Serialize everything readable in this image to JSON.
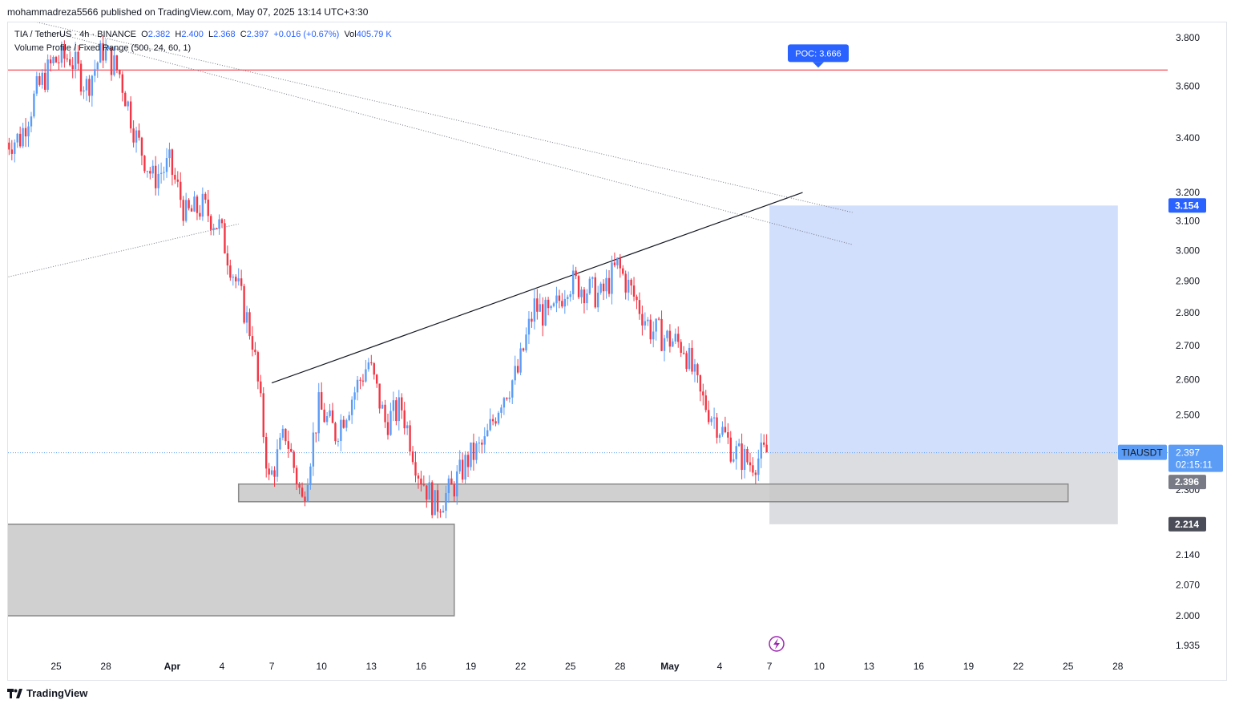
{
  "attribution": "mohammadreza5566 published on TradingView.com, May 07, 2025 13:14 UTC+3:30",
  "legend": {
    "symbol": "TIA / TetherUS · 4h · BINANCE",
    "o_label": "O",
    "o": "2.382",
    "h_label": "H",
    "h": "2.400",
    "l_label": "L",
    "l": "2.368",
    "c_label": "C",
    "c": "2.397",
    "change": "+0.016 (+0.67%)",
    "vol_label": "Vol",
    "vol": "405.79 K",
    "indicator": "Volume Profile / Fixed Range (500, 24, 60, 1)"
  },
  "footer": {
    "brand": "TradingView"
  },
  "colors": {
    "up": "#5b9cf6",
    "down": "#f23645",
    "poc_line": "#f23645",
    "target_zone": "#c9d8fb",
    "stop_zone": "#dcdde0",
    "support_box": "#c8c8c8",
    "price_tag": "#2962ff",
    "poc_tag": "#2962ff",
    "dark_tag": "#4a4d57"
  },
  "chart_data": {
    "type": "candlestick",
    "symbol": "TIAUSDT",
    "interval": "4h",
    "y_axis": {
      "ticks": [
        3.8,
        3.6,
        3.4,
        3.2,
        3.1,
        3.0,
        2.9,
        2.8,
        2.7,
        2.6,
        2.5,
        2.3,
        2.14,
        2.07,
        2.0,
        1.935
      ],
      "tick_labels": [
        "3.800",
        "3.600",
        "3.400",
        "3.200",
        "3.100",
        "3.000",
        "2.900",
        "2.800",
        "2.700",
        "2.600",
        "2.500",
        "2.300",
        "2.140",
        "2.070",
        "2.000",
        "1.935"
      ],
      "scale": "log"
    },
    "x_axis": {
      "labels": [
        "25",
        "28",
        "Apr",
        "4",
        "7",
        "10",
        "13",
        "16",
        "19",
        "22",
        "25",
        "28",
        "May",
        "4",
        "7",
        "10",
        "13",
        "16",
        "19",
        "22",
        "25",
        "28"
      ],
      "dates": [
        "2025-03-25",
        "2025-03-28",
        "2025-04-01",
        "2025-04-04",
        "2025-04-07",
        "2025-04-10",
        "2025-04-13",
        "2025-04-16",
        "2025-04-19",
        "2025-04-22",
        "2025-04-25",
        "2025-04-28",
        "2025-05-01",
        "2025-05-04",
        "2025-05-07",
        "2025-05-10",
        "2025-05-13",
        "2025-05-16",
        "2025-05-19",
        "2025-05-22",
        "2025-05-25",
        "2025-05-28"
      ],
      "bold": [
        "Apr",
        "May"
      ]
    },
    "price_path": [
      [
        "2025-03-22",
        3.38
      ],
      [
        "2025-03-23",
        3.4
      ],
      [
        "2025-03-24",
        3.58
      ],
      [
        "2025-03-25",
        3.7
      ],
      [
        "2025-03-26",
        3.72
      ],
      [
        "2025-03-27",
        3.6
      ],
      [
        "2025-03-28",
        3.75
      ],
      [
        "2025-03-29",
        3.65
      ],
      [
        "2025-03-30",
        3.4
      ],
      [
        "2025-03-31",
        3.25
      ],
      [
        "2025-04-01",
        3.3
      ],
      [
        "2025-04-02",
        3.12
      ],
      [
        "2025-04-03",
        3.15
      ],
      [
        "2025-04-04",
        3.08
      ],
      [
        "2025-04-05",
        2.9
      ],
      [
        "2025-04-06",
        2.72
      ],
      [
        "2025-04-07",
        2.32
      ],
      [
        "2025-04-08",
        2.45
      ],
      [
        "2025-04-09",
        2.27
      ],
      [
        "2025-04-10",
        2.52
      ],
      [
        "2025-04-11",
        2.45
      ],
      [
        "2025-04-12",
        2.55
      ],
      [
        "2025-04-13",
        2.65
      ],
      [
        "2025-04-14",
        2.48
      ],
      [
        "2025-04-15",
        2.52
      ],
      [
        "2025-04-16",
        2.35
      ],
      [
        "2025-04-17",
        2.26
      ],
      [
        "2025-04-18",
        2.3
      ],
      [
        "2025-04-19",
        2.38
      ],
      [
        "2025-04-20",
        2.42
      ],
      [
        "2025-04-21",
        2.55
      ],
      [
        "2025-04-22",
        2.62
      ],
      [
        "2025-04-23",
        2.82
      ],
      [
        "2025-04-24",
        2.78
      ],
      [
        "2025-04-25",
        2.9
      ],
      [
        "2025-04-26",
        2.88
      ],
      [
        "2025-04-27",
        2.85
      ],
      [
        "2025-04-28",
        2.95
      ],
      [
        "2025-04-29",
        2.85
      ],
      [
        "2025-04-30",
        2.75
      ],
      [
        "2025-05-01",
        2.72
      ],
      [
        "2025-05-02",
        2.7
      ],
      [
        "2025-05-03",
        2.55
      ],
      [
        "2025-05-04",
        2.48
      ],
      [
        "2025-05-05",
        2.4
      ],
      [
        "2025-05-06",
        2.37
      ],
      [
        "2025-05-07",
        2.397
      ]
    ],
    "key_prices": {
      "last": 2.397,
      "last_label": "2.397",
      "countdown": "02:15:11",
      "symbol_tag": "TIAUSDT",
      "poc": 3.666,
      "poc_label": "POC: 3.666",
      "target": 3.154,
      "target_label": "3.154",
      "mid": 2.396,
      "mid_label": "2.396",
      "stop": 2.214,
      "stop_label": "2.214"
    },
    "zones": [
      {
        "kind": "target",
        "x_from": "2025-05-07",
        "x_to": "2025-05-28",
        "y_from": 2.397,
        "y_to": 3.154
      },
      {
        "kind": "stop",
        "x_from": "2025-05-07",
        "x_to": "2025-05-28",
        "y_from": 2.214,
        "y_to": 2.397
      },
      {
        "kind": "support",
        "x_from": "2025-04-05",
        "x_to": "2025-05-25",
        "y_from": 2.27,
        "y_to": 2.315
      },
      {
        "kind": "support",
        "x_from": "2025-03-21",
        "x_to": "2025-04-18",
        "y_from": 2.0,
        "y_to": 2.214
      }
    ],
    "trendlines": [
      {
        "style": "solid",
        "from": [
          "2025-04-07",
          2.59
        ],
        "to": [
          "2025-05-09",
          3.2
        ]
      },
      {
        "style": "dotted",
        "from": [
          "2025-03-23",
          3.88
        ],
        "to": [
          "2025-05-12",
          3.13
        ]
      },
      {
        "style": "dotted",
        "from": [
          "2025-03-25",
          3.82
        ],
        "to": [
          "2025-05-12",
          3.02
        ]
      },
      {
        "style": "dotted",
        "from": [
          "2025-03-21",
          2.9
        ],
        "to": [
          "2025-04-05",
          3.09
        ]
      }
    ],
    "grid": false
  }
}
